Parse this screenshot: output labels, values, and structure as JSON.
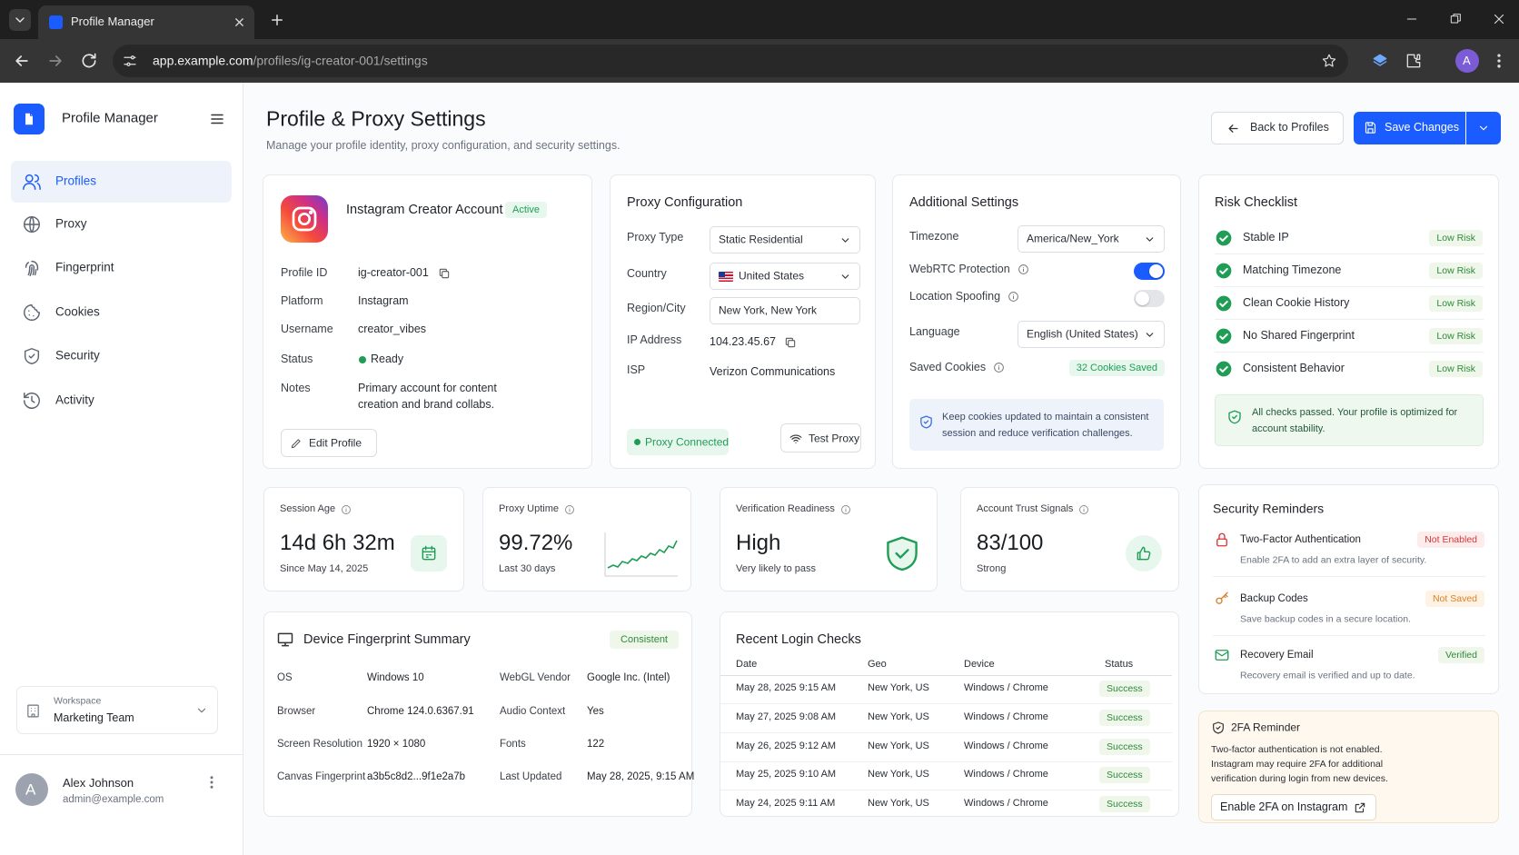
{
  "browser": {
    "tab_title": "Profile Manager",
    "url_host": "app.example.com",
    "url_path": "/profiles/ig-creator-001/settings",
    "avatar": "A"
  },
  "sidebar": {
    "app_name": "Profile Manager",
    "nav": [
      {
        "label": "Profiles",
        "active": true
      },
      {
        "label": "Proxy",
        "active": false
      },
      {
        "label": "Fingerprint",
        "active": false
      },
      {
        "label": "Cookies",
        "active": false
      },
      {
        "label": "Security",
        "active": false
      },
      {
        "label": "Activity",
        "active": false
      }
    ],
    "workspace_label": "Workspace",
    "workspace": "Marketing Team",
    "user": {
      "initial": "A",
      "name": "Alex Johnson",
      "email": "admin@example.com"
    }
  },
  "header": {
    "title": "Profile & Proxy Settings",
    "subtitle": "Manage your profile identity, proxy configuration, and security settings.",
    "back_button": "Back to Profiles",
    "save_button": "Save Changes"
  },
  "profile": {
    "name": "Instagram Creator Account",
    "badge": "Active",
    "fields": [
      {
        "label": "Profile ID",
        "value": "ig-creator-001",
        "control": "copy"
      },
      {
        "label": "Platform",
        "value": "Instagram",
        "control": "text"
      },
      {
        "label": "Username",
        "value": "creator_vibes",
        "control": "text"
      },
      {
        "label": "Status",
        "value": "Ready",
        "control": "status"
      },
      {
        "label": "Notes",
        "value": "Primary account for content creation and brand collabs.",
        "control": "note"
      }
    ],
    "edit_button": "Edit Profile"
  },
  "proxy": {
    "title": "Proxy Configuration",
    "fields": [
      {
        "label": "Proxy Type",
        "value": "Static Residential",
        "control": "select"
      },
      {
        "label": "Country",
        "value": "United States",
        "control": "flag-select"
      },
      {
        "label": "Region/City",
        "value": "New York, New York",
        "control": "input"
      },
      {
        "label": "IP Address",
        "value": "104.23.45.67",
        "control": "copy"
      },
      {
        "label": "ISP",
        "value": "Verizon Communications",
        "control": "text"
      }
    ],
    "status": "Proxy Connected",
    "test_button": "Test Proxy"
  },
  "additional": {
    "title": "Additional Settings",
    "fields": [
      {
        "label": "Timezone",
        "value": "America/New_York",
        "control": "select"
      },
      {
        "label": "WebRTC Protection",
        "enabled": true,
        "control": "toggle",
        "info": true
      },
      {
        "label": "Location Spoofing",
        "enabled": false,
        "control": "toggle",
        "info": true
      },
      {
        "label": "Language",
        "value": "English (United States)",
        "control": "select"
      },
      {
        "label": "Saved Cookies",
        "value": "32 Cookies Saved",
        "control": "badge",
        "info": true
      }
    ],
    "note": "Keep cookies updated to maintain a consistent session and reduce verification challenges."
  },
  "risk": {
    "title": "Risk Checklist",
    "items": [
      {
        "name": "Stable IP",
        "level": "Low Risk"
      },
      {
        "name": "Matching Timezone",
        "level": "Low Risk"
      },
      {
        "name": "Clean Cookie History",
        "level": "Low Risk"
      },
      {
        "name": "No Shared Fingerprint",
        "level": "Low Risk"
      },
      {
        "name": "Consistent Behavior",
        "level": "Low Risk"
      }
    ],
    "note": "All checks passed. Your profile is optimized for account stability."
  },
  "metrics": [
    {
      "label": "Session Age",
      "value": "14d 6h 32m",
      "sub": "Since May 14, 2025"
    },
    {
      "label": "Proxy Uptime",
      "value": "99.72%",
      "sub": "Last 30 days"
    },
    {
      "label": "Verification Readiness",
      "value": "High",
      "sub": "Very likely to pass"
    },
    {
      "label": "Account Trust Signals",
      "value": "83/100",
      "sub": "Strong"
    }
  ],
  "fingerprint": {
    "title": "Device Fingerprint Summary",
    "badge": "Consistent",
    "rows": [
      [
        {
          "label": "OS",
          "value": "Windows 10"
        },
        {
          "label": "WebGL Vendor",
          "value": "Google Inc. (Intel)"
        }
      ],
      [
        {
          "label": "Browser",
          "value": "Chrome 124.0.6367.91"
        },
        {
          "label": "Audio Context",
          "value": "Yes"
        }
      ],
      [
        {
          "label": "Screen Resolution",
          "value": "1920 × 1080"
        },
        {
          "label": "Fonts",
          "value": "122"
        }
      ],
      [
        {
          "label": "Canvas Fingerprint",
          "value": "a3b5c8d2...9f1e2a7b"
        },
        {
          "label": "Last Updated",
          "value": "May 28, 2025, 9:15 AM"
        }
      ]
    ]
  },
  "logins": {
    "title": "Recent Login Checks",
    "columns": [
      "Date",
      "Geo",
      "Device",
      "Status"
    ],
    "rows": [
      [
        "May 28, 2025 9:15 AM",
        "New York, US",
        "Windows / Chrome",
        "Success"
      ],
      [
        "May 27, 2025 9:08 AM",
        "New York, US",
        "Windows / Chrome",
        "Success"
      ],
      [
        "May 26, 2025 9:12 AM",
        "New York, US",
        "Windows / Chrome",
        "Success"
      ],
      [
        "May 25, 2025 9:10 AM",
        "New York, US",
        "Windows / Chrome",
        "Success"
      ],
      [
        "May 24, 2025 9:11 AM",
        "New York, US",
        "Windows / Chrome",
        "Success"
      ]
    ]
  },
  "security": {
    "title": "Security Reminders",
    "items": [
      {
        "name": "Two-Factor Authentication",
        "status": "Not Enabled",
        "tone": "danger",
        "desc": "Enable 2FA to add an extra layer of security."
      },
      {
        "name": "Backup Codes",
        "status": "Not Saved",
        "tone": "warning",
        "desc": "Save backup codes in a secure location."
      },
      {
        "name": "Recovery Email",
        "status": "Verified",
        "tone": "success",
        "desc": "Recovery email is verified and up to date."
      }
    ]
  },
  "twofa": {
    "title": "2FA Reminder",
    "text": "Two-factor authentication is not enabled. Instagram may require 2FA for additional verification during login from new devices.",
    "button": "Enable 2FA on Instagram"
  }
}
